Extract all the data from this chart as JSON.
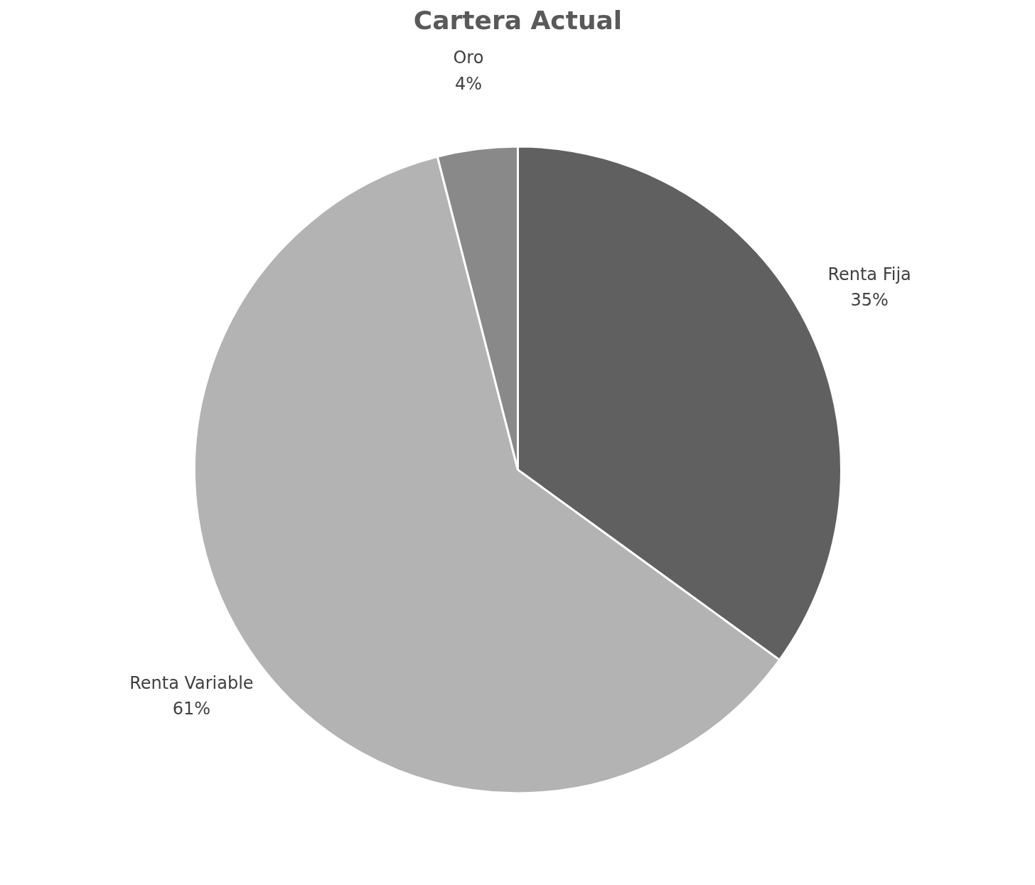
{
  "chart_data": {
    "type": "pie",
    "title": "Cartera Actual",
    "categories": [
      "Renta Fija",
      "Renta Variable",
      "Oro"
    ],
    "values": [
      35,
      61,
      4
    ],
    "colors": [
      "#606060",
      "#b3b3b3",
      "#898989"
    ],
    "value_labels": [
      "35%",
      "61%",
      "4%"
    ]
  }
}
